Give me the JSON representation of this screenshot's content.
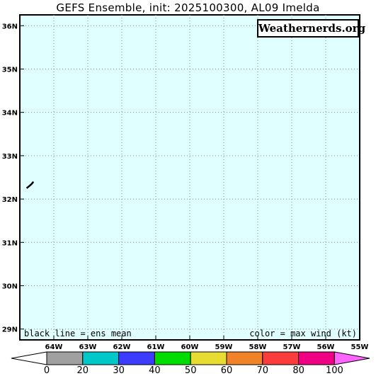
{
  "title": "GEFS Ensemble, init: 2025100300, AL09 Imelda",
  "brand": "Weathernerds.org",
  "legend_notes": {
    "left": "black line = ens mean",
    "right": "color = max wind (kt)"
  },
  "map": {
    "background_color": "#e0ffff",
    "lat_labels": [
      "36N",
      "35N",
      "34N",
      "33N",
      "32N",
      "31N",
      "30N",
      "29N"
    ],
    "lon_labels": [
      "64W",
      "63W",
      "62W",
      "61W",
      "60W",
      "59W",
      "58W",
      "57W",
      "56W",
      "55W"
    ],
    "ens_mean_track": {
      "color": "#000000",
      "points": [
        [
          -64.8,
          32.25
        ],
        [
          -64.72,
          32.3
        ],
        [
          -64.65,
          32.35
        ],
        [
          -64.6,
          32.4
        ]
      ]
    }
  },
  "colorbar": {
    "ticks": [
      "0",
      "20",
      "30",
      "40",
      "50",
      "60",
      "70",
      "80",
      "100"
    ],
    "colors": [
      "#a0a0a0",
      "#00c8c8",
      "#3c3cff",
      "#00dc00",
      "#e6dc32",
      "#f08228",
      "#fa3c3c",
      "#f00082",
      "#ff64ff"
    ],
    "under_color": "#ffffff",
    "over_color": "#ff64ff"
  }
}
